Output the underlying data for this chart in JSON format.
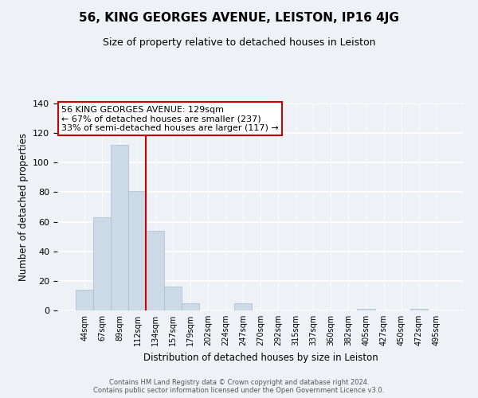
{
  "title": "56, KING GEORGES AVENUE, LEISTON, IP16 4JG",
  "subtitle": "Size of property relative to detached houses in Leiston",
  "xlabel": "Distribution of detached houses by size in Leiston",
  "ylabel": "Number of detached properties",
  "bar_labels": [
    "44sqm",
    "67sqm",
    "89sqm",
    "112sqm",
    "134sqm",
    "157sqm",
    "179sqm",
    "202sqm",
    "224sqm",
    "247sqm",
    "270sqm",
    "292sqm",
    "315sqm",
    "337sqm",
    "360sqm",
    "382sqm",
    "405sqm",
    "427sqm",
    "450sqm",
    "472sqm",
    "495sqm"
  ],
  "bar_values": [
    14,
    63,
    112,
    81,
    54,
    16,
    5,
    0,
    0,
    5,
    0,
    0,
    0,
    0,
    0,
    0,
    1,
    0,
    0,
    1,
    0
  ],
  "bar_color": "#ccdae8",
  "bar_edge_color": "#aabbcc",
  "vline_color": "#cc0000",
  "ylim": [
    0,
    140
  ],
  "yticks": [
    0,
    20,
    40,
    60,
    80,
    100,
    120,
    140
  ],
  "annotation_title": "56 KING GEORGES AVENUE: 129sqm",
  "annotation_line1": "← 67% of detached houses are smaller (237)",
  "annotation_line2": "33% of semi-detached houses are larger (117) →",
  "annotation_box_color": "#ffffff",
  "annotation_box_edge": "#cc0000",
  "footer1": "Contains HM Land Registry data © Crown copyright and database right 2024.",
  "footer2": "Contains public sector information licensed under the Open Government Licence v3.0.",
  "background_color": "#eef2f6",
  "grid_color": "#ffffff",
  "title_fontsize": 11,
  "subtitle_fontsize": 9
}
